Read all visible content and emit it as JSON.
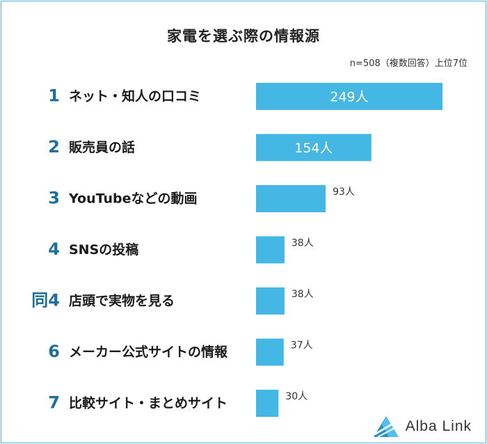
{
  "chart_data": {
    "type": "bar",
    "orientation": "horizontal",
    "title": "家電を選ぶ際の情報源",
    "note": "n=508（複数回答）上位7位",
    "categories": [
      {
        "rank": "1",
        "label": "ネット・知人の口コミ",
        "value": 249,
        "value_label": "249人"
      },
      {
        "rank": "2",
        "label": "販売員の話",
        "value": 154,
        "value_label": "154人"
      },
      {
        "rank": "3",
        "label": "YouTubeなどの動画",
        "value": 93,
        "value_label": "93人"
      },
      {
        "rank": "4",
        "label": "SNSの投稿",
        "value": 38,
        "value_label": "38人"
      },
      {
        "rank": "同4",
        "label": "店頭で実物を見る",
        "value": 38,
        "value_label": "38人"
      },
      {
        "rank": "6",
        "label": "メーカー公式サイトの情報",
        "value": 37,
        "value_label": "37人"
      },
      {
        "rank": "7",
        "label": "比較サイト・まとめサイト",
        "value": 30,
        "value_label": "30人"
      }
    ],
    "colors": {
      "bar": "#45b7e4",
      "rank": "#1e6e9e",
      "frame": "#55b8dd"
    }
  },
  "brand": {
    "name": "Alba Link",
    "icon": "alba-link-logo-icon"
  }
}
